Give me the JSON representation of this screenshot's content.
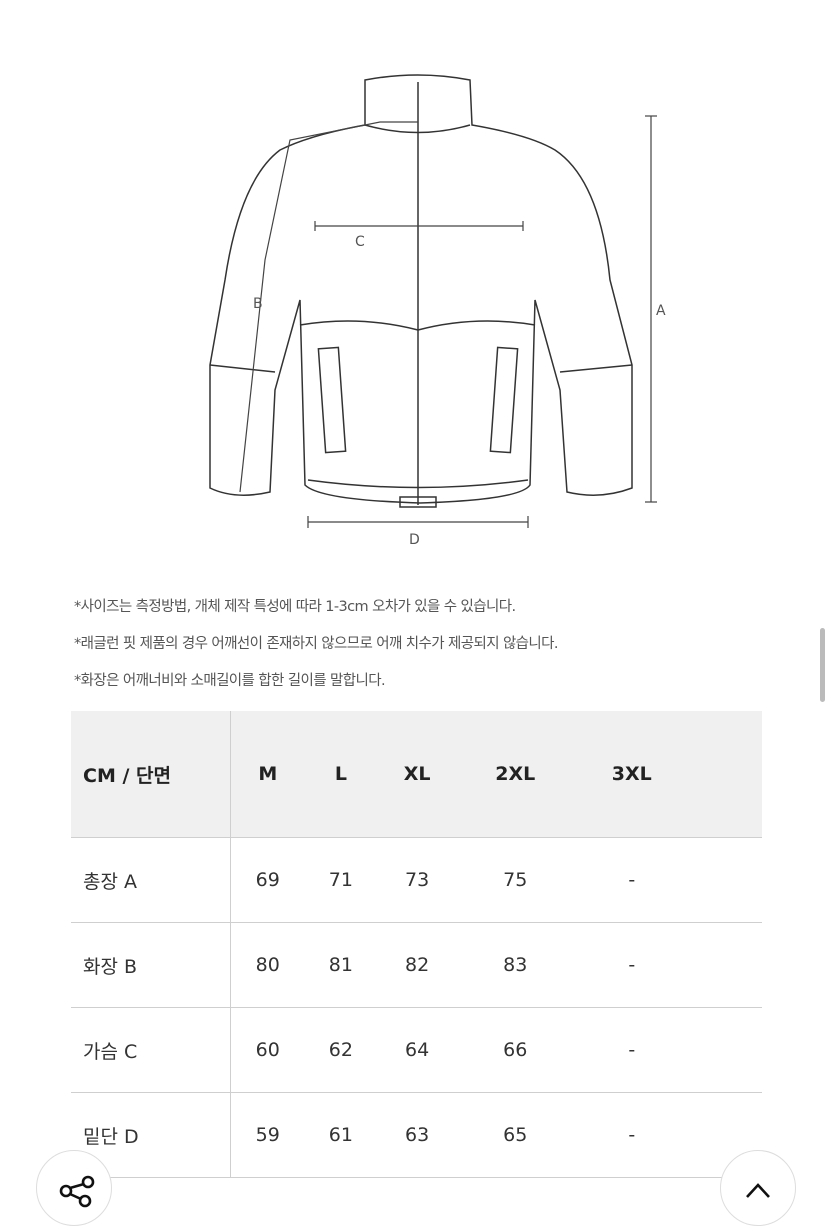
{
  "diagram": {
    "labels": {
      "a": "A",
      "b": "B",
      "c": "C",
      "d": "D"
    }
  },
  "notes": [
    "*사이즈는 측정방법, 개체 제작 특성에 따라 1-3cm 오차가 있을 수 있습니다.",
    "*래글런 핏 제품의 경우 어깨선이 존재하지 않으므로 어깨 치수가 제공되지 않습니다.",
    "*화장은 어깨너비와 소매길이를 합한 길이를 말합니다."
  ],
  "table": {
    "headers": [
      "CM / 단면",
      "M",
      "L",
      "XL",
      "2XL",
      "3XL"
    ],
    "rows": [
      [
        "총장 A",
        "69",
        "71",
        "73",
        "75",
        "-"
      ],
      [
        "화장 B",
        "80",
        "81",
        "82",
        "83",
        "-"
      ],
      [
        "가슴 C",
        "60",
        "62",
        "64",
        "66",
        "-"
      ],
      [
        "밑단 D",
        "59",
        "61",
        "63",
        "65",
        "-"
      ]
    ]
  },
  "buttons": {
    "share": "share-icon",
    "top": "chevron-up-icon"
  }
}
